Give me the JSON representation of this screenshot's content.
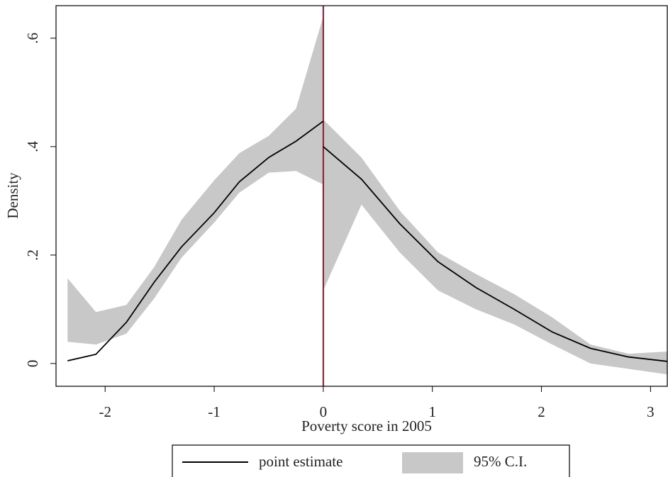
{
  "chart_data": {
    "type": "line_ci",
    "x_label": "Poverty score in 2005",
    "y_label": "Density",
    "xlim": [
      -2.45,
      3.16
    ],
    "ylim": [
      -0.042,
      0.66
    ],
    "xticks": [
      -2,
      -1,
      0,
      1,
      2,
      3
    ],
    "yticks": [
      0,
      {
        "value": 0.2,
        "label": ".2"
      },
      {
        "value": 0.4,
        "label": ".4"
      },
      {
        "value": 0.6,
        "label": ".6"
      }
    ],
    "cutoff": 0,
    "cutoff_color": "#8b1a2b",
    "line_color": "#000000",
    "band_color": "#c8c8c8",
    "segments": [
      {
        "x": [
          -2.344,
          -2.084,
          -1.805,
          -1.55,
          -1.3,
          -1.0,
          -0.77,
          -0.5,
          -0.25,
          0
        ],
        "values": [
          0.005,
          0.017,
          0.076,
          0.15,
          0.215,
          0.278,
          0.335,
          0.38,
          0.41,
          0.447
        ],
        "ci_lower": [
          0.04,
          0.035,
          0.055,
          0.12,
          0.195,
          0.26,
          0.315,
          0.352,
          0.355,
          0.33
        ],
        "ci_upper": [
          0.157,
          0.095,
          0.108,
          0.178,
          0.265,
          0.338,
          0.388,
          0.42,
          0.47,
          0.64
        ]
      },
      {
        "x": [
          0,
          0.35,
          0.7,
          1.05,
          1.4,
          1.75,
          2.1,
          2.45,
          2.8,
          3.15
        ],
        "values": [
          0.4,
          0.34,
          0.258,
          0.188,
          0.14,
          0.1,
          0.058,
          0.028,
          0.012,
          0.004
        ],
        "ci_lower": [
          0.135,
          0.293,
          0.205,
          0.135,
          0.1,
          0.072,
          0.035,
          0.0,
          -0.01,
          -0.02
        ],
        "ci_upper": [
          0.45,
          0.38,
          0.282,
          0.205,
          0.165,
          0.128,
          0.085,
          0.035,
          0.018,
          0.022
        ]
      }
    ],
    "legend": [
      "point estimate",
      "95% C.I."
    ]
  }
}
